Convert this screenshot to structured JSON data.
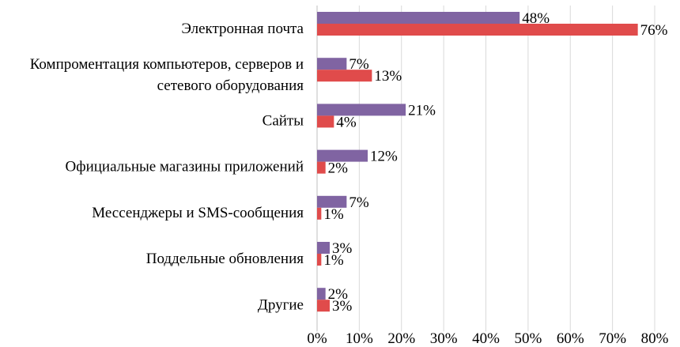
{
  "chart_data": {
    "type": "bar",
    "orientation": "horizontal",
    "title": "",
    "xlabel": "",
    "ylabel": "",
    "xlim": [
      0,
      80
    ],
    "x_ticks": [
      "0%",
      "10%",
      "20%",
      "30%",
      "40%",
      "50%",
      "60%",
      "70%",
      "80%"
    ],
    "grid": true,
    "value_suffix": "%",
    "categories": [
      [
        "Электронная почта"
      ],
      [
        "Компроментация компьютеров, серверов и",
        "сетевого оборудования"
      ],
      [
        "Сайты"
      ],
      [
        "Официальные магазины приложений"
      ],
      [
        "Мессенджеры и SMS-сообщения"
      ],
      [
        "Поддельные обновления"
      ],
      [
        "Другие"
      ]
    ],
    "series": [
      {
        "name": "Series 1",
        "color": "#8064a2",
        "values": [
          48,
          7,
          21,
          12,
          7,
          3,
          2
        ]
      },
      {
        "name": "Series 2",
        "color": "#e04b4b",
        "values": [
          76,
          13,
          4,
          2,
          1,
          1,
          3
        ]
      }
    ]
  }
}
